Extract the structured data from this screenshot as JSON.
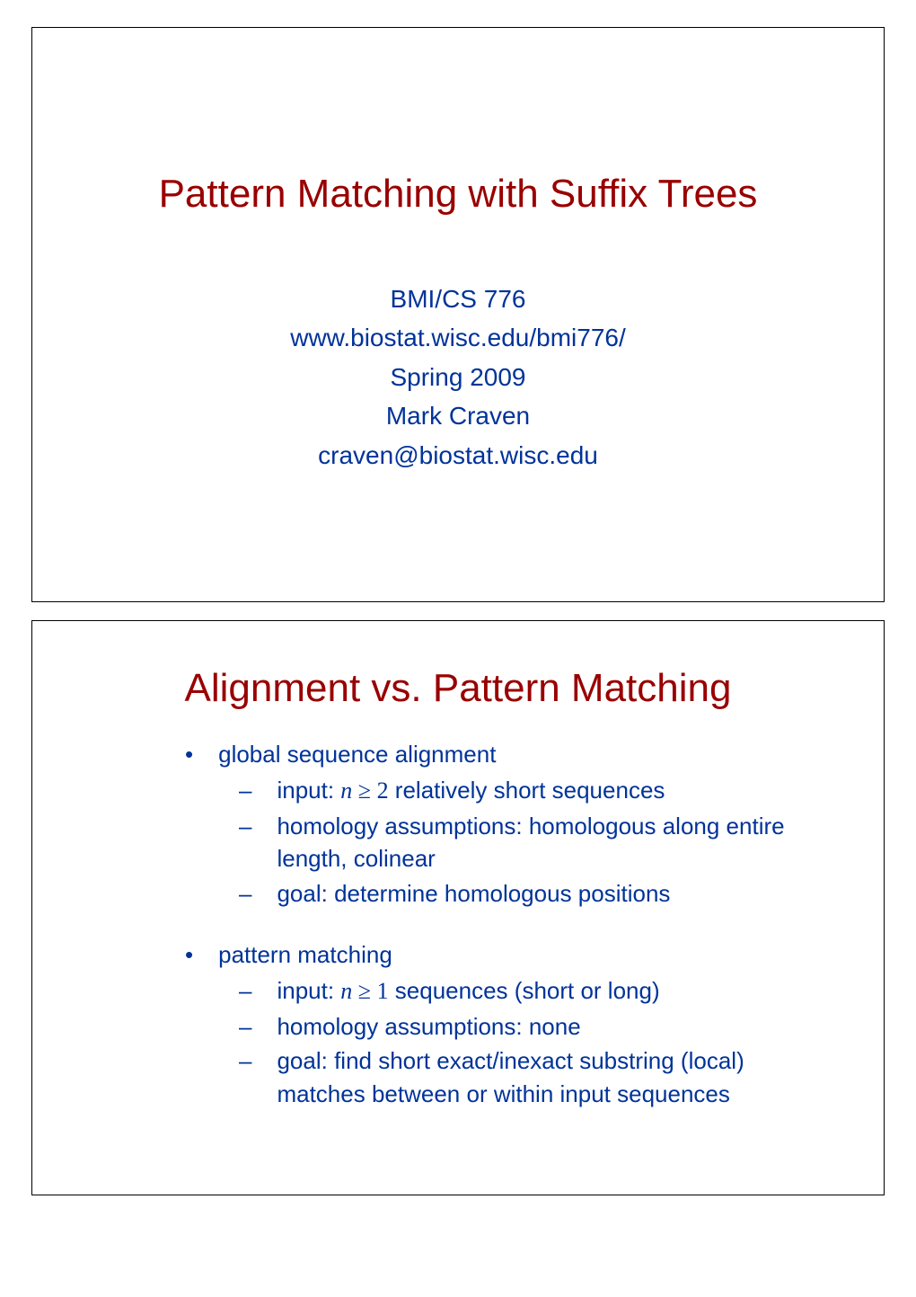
{
  "colors": {
    "title": "#990000",
    "subtitle": "#003399",
    "body": "#003399",
    "background": "#ffffff",
    "border": "#000000"
  },
  "slide1": {
    "title": "Pattern Matching with Suffix Trees",
    "subtitle": {
      "line1": "BMI/CS 776",
      "line2": "www.biostat.wisc.edu/bmi776/",
      "line3": "Spring 2009",
      "line4": "Mark Craven",
      "line5": "craven@biostat.wisc.edu"
    }
  },
  "slide2": {
    "title": "Alignment vs. Pattern Matching",
    "section1": {
      "heading": "global sequence alignment",
      "items": {
        "item1_prefix": "input: ",
        "item1_math_var": "n",
        "item1_math_op": " ≥ 2",
        "item1_suffix": " relatively short sequences",
        "item2": "homology assumptions: homologous along entire length, colinear",
        "item3": "goal: determine homologous positions"
      }
    },
    "section2": {
      "heading": "pattern matching",
      "items": {
        "item1_prefix": "input: ",
        "item1_math_var": "n",
        "item1_math_op": " ≥ 1",
        "item1_suffix": " sequences (short or long)",
        "item2": "homology assumptions: none",
        "item3": "goal: find short exact/inexact substring (local) matches between or within input sequences"
      }
    }
  },
  "bullets": {
    "dot": "•",
    "dash": "–"
  }
}
